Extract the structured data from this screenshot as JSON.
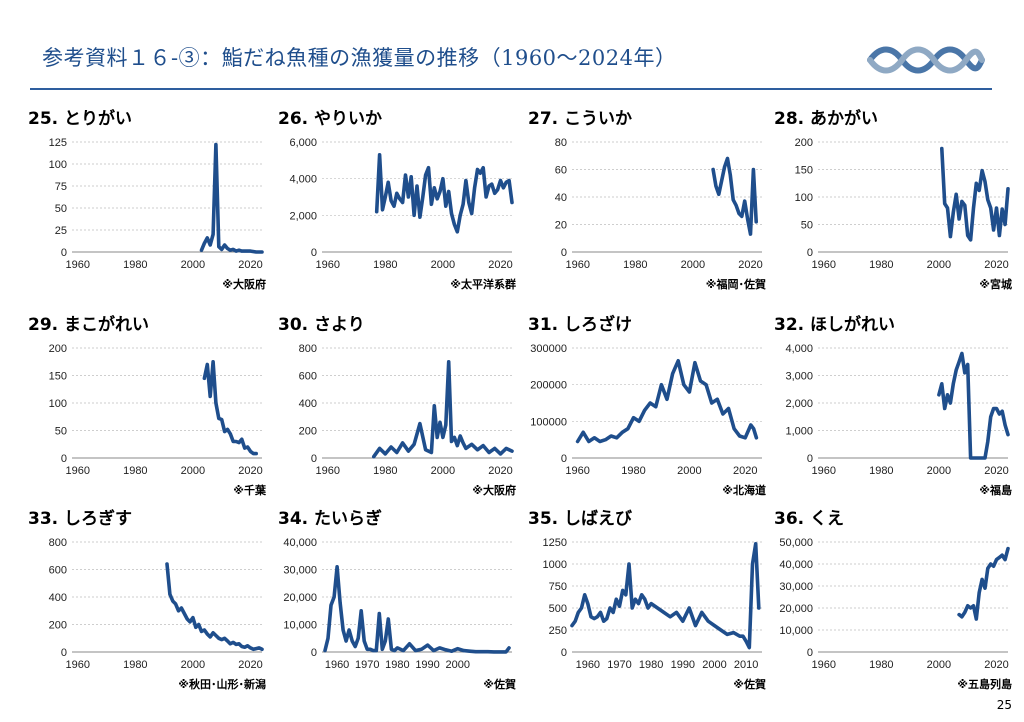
{
  "header": {
    "title": "参考資料１６-③：鮨だね魚種の漁獲量の推移（1960～2024年）",
    "page_number": "25"
  },
  "colors": {
    "line": "#1f4e8c",
    "title": "#1f4e8c",
    "rule": "#2e5e9e",
    "grid": "#bfbfbf"
  },
  "chart_data": [
    {
      "type": "line",
      "title": "25. とりがい",
      "note": "※大阪府",
      "xlim": [
        1958,
        2024
      ],
      "xticks": [
        1960,
        1980,
        2000,
        2020
      ],
      "ylim": [
        0,
        125
      ],
      "yticks": [
        0,
        25,
        50,
        75,
        100,
        125
      ],
      "ytick_labels": [
        "0",
        "25",
        "50",
        "75",
        "100",
        "125"
      ],
      "series": [
        {
          "x": [
            2003,
            2004,
            2005,
            2006,
            2007,
            2008,
            2009,
            2010,
            2011,
            2012,
            2013,
            2014,
            2015,
            2016,
            2017,
            2018,
            2020,
            2022,
            2024
          ],
          "y": [
            2,
            10,
            16,
            8,
            20,
            122,
            6,
            3,
            8,
            4,
            2,
            3,
            1,
            2,
            1,
            1,
            1,
            0,
            0
          ]
        }
      ]
    },
    {
      "type": "line",
      "title": "26. やりいか",
      "note": "※太平洋系群",
      "xlim": [
        1958,
        2024
      ],
      "xticks": [
        1960,
        1980,
        2000,
        2020
      ],
      "ylim": [
        0,
        6000
      ],
      "yticks": [
        0,
        2000,
        4000,
        6000
      ],
      "ytick_labels": [
        "0",
        "2,000",
        "4,000",
        "6,000"
      ],
      "series": [
        {
          "x": [
            1977,
            1978,
            1979,
            1980,
            1981,
            1982,
            1983,
            1984,
            1985,
            1986,
            1987,
            1988,
            1989,
            1990,
            1991,
            1992,
            1993,
            1994,
            1995,
            1996,
            1997,
            1998,
            1999,
            2000,
            2001,
            2002,
            2003,
            2004,
            2005,
            2006,
            2007,
            2008,
            2009,
            2010,
            2011,
            2012,
            2013,
            2014,
            2015,
            2016,
            2017,
            2018,
            2019,
            2020,
            2021,
            2022,
            2023,
            2024
          ],
          "y": [
            2200,
            5300,
            2300,
            3000,
            3800,
            2800,
            2500,
            3200,
            2900,
            2700,
            4200,
            3000,
            4100,
            2000,
            3600,
            1900,
            3000,
            4200,
            4600,
            2600,
            3500,
            2900,
            3300,
            4000,
            2500,
            3300,
            2100,
            1500,
            1100,
            2000,
            2600,
            3900,
            2700,
            2100,
            3500,
            4500,
            4300,
            4600,
            3000,
            3600,
            3700,
            3200,
            3400,
            3900,
            3500,
            3800,
            3900,
            2700
          ]
        }
      ]
    },
    {
      "type": "line",
      "title": "27. こういか",
      "note": "※福岡･佐賀",
      "xlim": [
        1958,
        2024
      ],
      "xticks": [
        1960,
        1980,
        2000,
        2020
      ],
      "ylim": [
        0,
        80
      ],
      "yticks": [
        0,
        20,
        40,
        60,
        80
      ],
      "ytick_labels": [
        "0",
        "20",
        "40",
        "60",
        "80"
      ],
      "series": [
        {
          "x": [
            2007,
            2008,
            2009,
            2010,
            2011,
            2012,
            2013,
            2014,
            2015,
            2016,
            2017,
            2018,
            2019,
            2020,
            2021,
            2022
          ],
          "y": [
            60,
            48,
            42,
            52,
            62,
            68,
            56,
            38,
            34,
            28,
            26,
            37,
            24,
            13,
            60,
            22
          ]
        }
      ]
    },
    {
      "type": "line",
      "title": "28. あかがい",
      "note": "※宮城",
      "xlim": [
        1958,
        2024
      ],
      "xticks": [
        1960,
        1980,
        2000,
        2020
      ],
      "ylim": [
        0,
        200
      ],
      "yticks": [
        0,
        50,
        100,
        150,
        200
      ],
      "ytick_labels": [
        "0",
        "50",
        "100",
        "150",
        "200"
      ],
      "series": [
        {
          "x": [
            2001,
            2002,
            2003,
            2004,
            2005,
            2006,
            2007,
            2008,
            2009,
            2010,
            2011,
            2012,
            2013,
            2014,
            2015,
            2016,
            2017,
            2018,
            2019,
            2020,
            2021,
            2022,
            2023,
            2024
          ],
          "y": [
            188,
            88,
            80,
            28,
            72,
            105,
            60,
            92,
            85,
            30,
            22,
            80,
            125,
            112,
            148,
            128,
            95,
            80,
            40,
            80,
            30,
            78,
            50,
            115
          ]
        }
      ]
    },
    {
      "type": "line",
      "title": "29. まこがれい",
      "note": "※千葉",
      "xlim": [
        1958,
        2024
      ],
      "xticks": [
        1960,
        1980,
        2000,
        2020
      ],
      "ylim": [
        0,
        200
      ],
      "yticks": [
        0,
        50,
        100,
        150,
        200
      ],
      "ytick_labels": [
        "0",
        "50",
        "100",
        "150",
        "200"
      ],
      "series": [
        {
          "x": [
            2004,
            2005,
            2006,
            2007,
            2008,
            2009,
            2010,
            2011,
            2012,
            2013,
            2014,
            2015,
            2016,
            2017,
            2018,
            2019,
            2020,
            2021,
            2022
          ],
          "y": [
            145,
            170,
            112,
            175,
            100,
            72,
            70,
            48,
            52,
            44,
            30,
            30,
            28,
            34,
            18,
            20,
            12,
            8,
            8
          ]
        }
      ]
    },
    {
      "type": "line",
      "title": "30. さより",
      "note": "※大阪府",
      "xlim": [
        1958,
        2024
      ],
      "xticks": [
        1960,
        1980,
        2000,
        2020
      ],
      "ylim": [
        0,
        800
      ],
      "yticks": [
        0,
        200,
        400,
        600,
        800
      ],
      "ytick_labels": [
        "0",
        "200",
        "400",
        "600",
        "800"
      ],
      "series": [
        {
          "x": [
            1976,
            1978,
            1980,
            1982,
            1984,
            1986,
            1988,
            1990,
            1992,
            1994,
            1996,
            1997,
            1998,
            1999,
            2000,
            2001,
            2002,
            2003,
            2004,
            2005,
            2006,
            2007,
            2008,
            2010,
            2012,
            2014,
            2016,
            2018,
            2020,
            2022,
            2024
          ],
          "y": [
            10,
            70,
            30,
            80,
            40,
            110,
            50,
            100,
            250,
            60,
            40,
            380,
            150,
            260,
            150,
            240,
            700,
            120,
            150,
            90,
            160,
            110,
            70,
            100,
            60,
            90,
            40,
            70,
            30,
            70,
            50
          ]
        }
      ]
    },
    {
      "type": "line",
      "title": "31. しろざけ",
      "note": "※北海道",
      "xlim": [
        1958,
        2026
      ],
      "xticks": [
        1960,
        1980,
        2000,
        2020
      ],
      "ylim": [
        0,
        300000
      ],
      "yticks": [
        0,
        100000,
        200000,
        300000
      ],
      "ytick_labels": [
        "0",
        "100000",
        "200000",
        "300000"
      ],
      "series": [
        {
          "x": [
            1960,
            1962,
            1964,
            1966,
            1968,
            1970,
            1972,
            1974,
            1976,
            1978,
            1980,
            1982,
            1984,
            1986,
            1988,
            1990,
            1992,
            1994,
            1996,
            1998,
            2000,
            2002,
            2004,
            2006,
            2008,
            2010,
            2012,
            2014,
            2016,
            2018,
            2020,
            2022,
            2023,
            2024
          ],
          "y": [
            45000,
            70000,
            45000,
            55000,
            45000,
            50000,
            60000,
            55000,
            70000,
            80000,
            110000,
            100000,
            130000,
            150000,
            140000,
            200000,
            160000,
            230000,
            265000,
            200000,
            180000,
            260000,
            210000,
            200000,
            150000,
            160000,
            120000,
            135000,
            80000,
            60000,
            55000,
            90000,
            80000,
            55000
          ]
        }
      ]
    },
    {
      "type": "line",
      "title": "32. ほしがれい",
      "note": "※福島",
      "xlim": [
        1958,
        2024
      ],
      "xticks": [
        1960,
        1980,
        2000,
        2020
      ],
      "ylim": [
        0,
        4000
      ],
      "yticks": [
        0,
        1000,
        2000,
        3000,
        4000
      ],
      "ytick_labels": [
        "0",
        "1,000",
        "2,000",
        "3,000",
        "4,000"
      ],
      "series": [
        {
          "x": [
            2000,
            2001,
            2002,
            2003,
            2004,
            2005,
            2006,
            2007,
            2008,
            2009,
            2010,
            2011,
            2012,
            2013,
            2014,
            2015,
            2016,
            2017,
            2018,
            2019,
            2020,
            2021,
            2022,
            2023,
            2024
          ],
          "y": [
            2300,
            2700,
            1800,
            2300,
            2000,
            2700,
            3200,
            3500,
            3800,
            3100,
            3400,
            0,
            0,
            0,
            0,
            0,
            0,
            600,
            1500,
            1800,
            1800,
            1600,
            1700,
            1200,
            850
          ]
        }
      ]
    },
    {
      "type": "line",
      "title": "33. しろぎす",
      "note": "※秋田･山形･新潟",
      "xlim": [
        1958,
        2024
      ],
      "xticks": [
        1960,
        1980,
        2000,
        2020
      ],
      "ylim": [
        0,
        800
      ],
      "yticks": [
        0,
        200,
        400,
        600,
        800
      ],
      "ytick_labels": [
        "0",
        "200",
        "400",
        "600",
        "800"
      ],
      "series": [
        {
          "x": [
            1991,
            1992,
            1993,
            1994,
            1995,
            1996,
            1997,
            1998,
            1999,
            2000,
            2001,
            2002,
            2003,
            2004,
            2005,
            2006,
            2007,
            2008,
            2009,
            2010,
            2011,
            2012,
            2013,
            2014,
            2015,
            2016,
            2017,
            2018,
            2019,
            2020,
            2021,
            2022,
            2023,
            2024
          ],
          "y": [
            640,
            420,
            370,
            350,
            300,
            320,
            280,
            240,
            220,
            250,
            180,
            200,
            150,
            160,
            130,
            110,
            140,
            120,
            100,
            90,
            100,
            80,
            60,
            70,
            55,
            60,
            40,
            35,
            45,
            30,
            20,
            25,
            30,
            20
          ]
        }
      ]
    },
    {
      "type": "line",
      "title": "34. たいらぎ",
      "note": "※佐賀",
      "xlim": [
        1955,
        2018
      ],
      "xticks": [
        1960,
        1970,
        1980,
        1990,
        2000
      ],
      "ylim": [
        0,
        40000
      ],
      "yticks": [
        0,
        10000,
        20000,
        30000,
        40000
      ],
      "ytick_labels": [
        "0",
        "10,000",
        "20,000",
        "30,000",
        "40,000"
      ],
      "series": [
        {
          "x": [
            1956,
            1957,
            1958,
            1959,
            1960,
            1961,
            1962,
            1963,
            1964,
            1965,
            1966,
            1967,
            1968,
            1969,
            1970,
            1971,
            1972,
            1973,
            1974,
            1975,
            1976,
            1977,
            1978,
            1979,
            1980,
            1982,
            1984,
            1986,
            1988,
            1990,
            1992,
            1994,
            1996,
            1998,
            2000,
            2002,
            2004,
            2006,
            2008,
            2010,
            2012,
            2014,
            2016,
            2017
          ],
          "y": [
            500,
            5000,
            17000,
            20000,
            31000,
            18000,
            8000,
            4000,
            8000,
            4000,
            2000,
            5000,
            15000,
            4000,
            1000,
            1000,
            500,
            500,
            14000,
            1000,
            4000,
            12000,
            1000,
            500,
            1500,
            500,
            3000,
            500,
            1000,
            2500,
            500,
            1500,
            800,
            300,
            1200,
            500,
            300,
            100,
            100,
            100,
            50,
            50,
            50,
            1500
          ]
        }
      ]
    },
    {
      "type": "line",
      "title": "35. しばえび",
      "note": "※佐賀",
      "xlim": [
        1955,
        2015
      ],
      "xticks": [
        1960,
        1970,
        1980,
        1990,
        2000,
        2010
      ],
      "ylim": [
        0,
        1250
      ],
      "yticks": [
        0,
        250,
        500,
        750,
        1000,
        1250
      ],
      "ytick_labels": [
        "0",
        "250",
        "500",
        "750",
        "1000",
        "1250"
      ],
      "series": [
        {
          "x": [
            1955,
            1956,
            1957,
            1958,
            1959,
            1960,
            1961,
            1962,
            1963,
            1964,
            1965,
            1966,
            1967,
            1968,
            1969,
            1970,
            1971,
            1972,
            1973,
            1974,
            1975,
            1976,
            1977,
            1978,
            1979,
            1980,
            1982,
            1984,
            1986,
            1988,
            1990,
            1992,
            1994,
            1996,
            1998,
            2000,
            2002,
            2004,
            2006,
            2008,
            2009,
            2010,
            2011,
            2012,
            2013,
            2014
          ],
          "y": [
            300,
            350,
            450,
            500,
            650,
            550,
            400,
            380,
            400,
            450,
            350,
            380,
            500,
            450,
            600,
            520,
            700,
            650,
            1000,
            500,
            600,
            550,
            650,
            600,
            500,
            550,
            500,
            450,
            400,
            450,
            350,
            500,
            300,
            450,
            350,
            300,
            250,
            200,
            220,
            180,
            180,
            120,
            50,
            1000,
            1230,
            500
          ]
        }
      ]
    },
    {
      "type": "line",
      "title": "36. くえ",
      "note": "※五島列島",
      "xlim": [
        1958,
        2024
      ],
      "xticks": [
        1960,
        1980,
        2000,
        2020
      ],
      "ylim": [
        0,
        50000
      ],
      "yticks": [
        0,
        10000,
        20000,
        30000,
        40000,
        50000
      ],
      "ytick_labels": [
        "0",
        "10,000",
        "20,000",
        "30,000",
        "40,000",
        "50,000"
      ],
      "series": [
        {
          "x": [
            2007,
            2008,
            2009,
            2010,
            2011,
            2012,
            2013,
            2014,
            2015,
            2016,
            2017,
            2018,
            2019,
            2020,
            2021,
            2022,
            2023,
            2024
          ],
          "y": [
            17000,
            16000,
            18000,
            21000,
            20000,
            21000,
            15000,
            27000,
            33000,
            29000,
            38000,
            40000,
            39000,
            42000,
            43000,
            44000,
            42000,
            47000
          ]
        }
      ]
    }
  ]
}
